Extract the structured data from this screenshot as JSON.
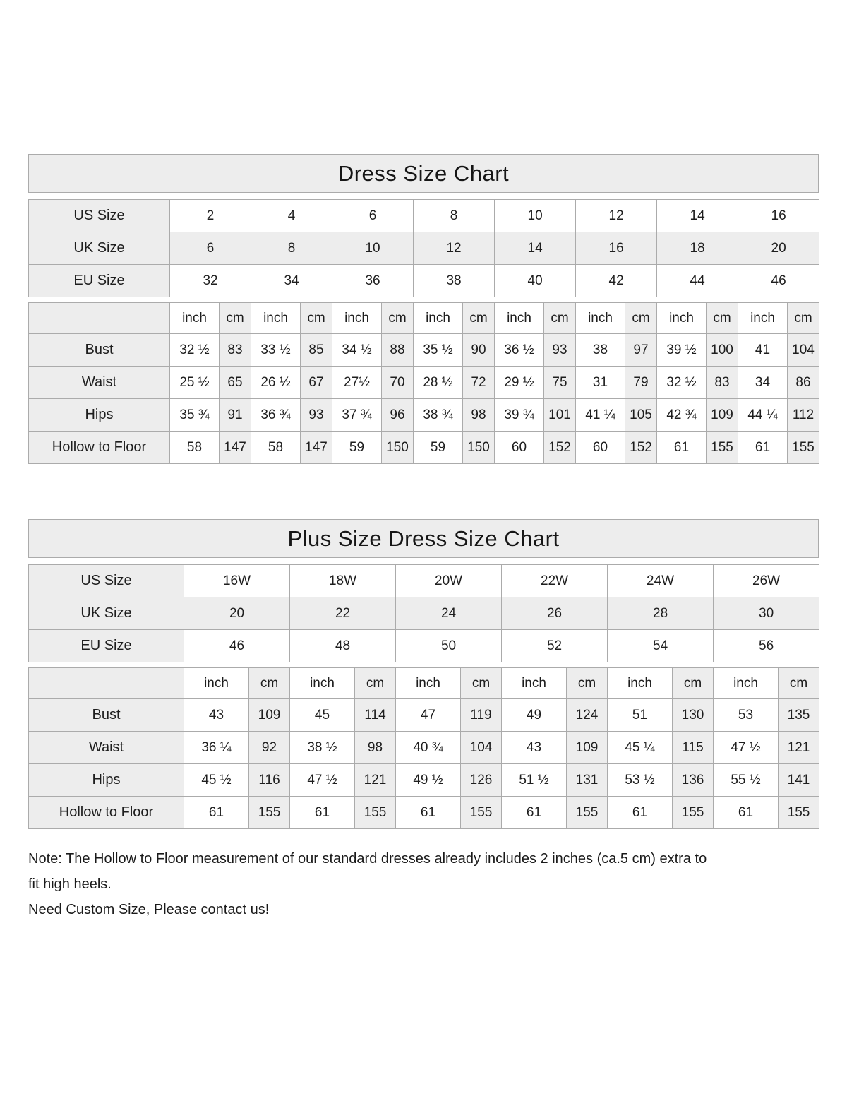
{
  "colors": {
    "page_background": "#ffffff",
    "shaded_cell": "#ededed",
    "border": "#ababab",
    "text": "#1e1e1e"
  },
  "standard_chart": {
    "title": "Dress Size Chart",
    "size_rows": [
      {
        "label": "US Size",
        "cells": [
          "2",
          "4",
          "6",
          "8",
          "10",
          "12",
          "14",
          "16"
        ]
      },
      {
        "label": "UK Size",
        "cells": [
          "6",
          "8",
          "10",
          "12",
          "14",
          "16",
          "18",
          "20"
        ]
      },
      {
        "label": "EU Size",
        "cells": [
          "32",
          "34",
          "36",
          "38",
          "40",
          "42",
          "44",
          "46"
        ]
      }
    ],
    "unit_row": [
      "inch",
      "cm",
      "inch",
      "cm",
      "inch",
      "cm",
      "inch",
      "cm",
      "inch",
      "cm",
      "inch",
      "cm",
      "inch",
      "cm",
      "inch",
      "cm"
    ],
    "measure_rows": [
      {
        "label": "Bust",
        "cells": [
          "32 ½",
          "83",
          "33 ½",
          "85",
          "34 ½",
          "88",
          "35 ½",
          "90",
          "36 ½",
          "93",
          "38",
          "97",
          "39 ½",
          "100",
          "41",
          "104"
        ]
      },
      {
        "label": "Waist",
        "cells": [
          "25 ½",
          "65",
          "26 ½",
          "67",
          "27½",
          "70",
          "28 ½",
          "72",
          "29 ½",
          "75",
          "31",
          "79",
          "32 ½",
          "83",
          "34",
          "86"
        ]
      },
      {
        "label": "Hips",
        "cells": [
          "35 ¾",
          "91",
          "36 ¾",
          "93",
          "37 ¾",
          "96",
          "38 ¾",
          "98",
          "39 ¾",
          "101",
          "41 ¼",
          "105",
          "42 ¾",
          "109",
          "44 ¼",
          "112"
        ]
      },
      {
        "label": "Hollow to Floor",
        "cells": [
          "58",
          "147",
          "58",
          "147",
          "59",
          "150",
          "59",
          "150",
          "60",
          "152",
          "60",
          "152",
          "61",
          "155",
          "61",
          "155"
        ]
      }
    ]
  },
  "plus_chart": {
    "title": "Plus Size Dress Size Chart",
    "size_rows": [
      {
        "label": "US Size",
        "cells": [
          "16W",
          "18W",
          "20W",
          "22W",
          "24W",
          "26W"
        ]
      },
      {
        "label": "UK Size",
        "cells": [
          "20",
          "22",
          "24",
          "26",
          "28",
          "30"
        ]
      },
      {
        "label": "EU Size",
        "cells": [
          "46",
          "48",
          "50",
          "52",
          "54",
          "56"
        ]
      }
    ],
    "unit_row": [
      "inch",
      "cm",
      "inch",
      "cm",
      "inch",
      "cm",
      "inch",
      "cm",
      "inch",
      "cm",
      "inch",
      "cm"
    ],
    "measure_rows": [
      {
        "label": "Bust",
        "cells": [
          "43",
          "109",
          "45",
          "114",
          "47",
          "119",
          "49",
          "124",
          "51",
          "130",
          "53",
          "135"
        ]
      },
      {
        "label": "Waist",
        "cells": [
          "36 ¼",
          "92",
          "38 ½",
          "98",
          "40 ¾",
          "104",
          "43",
          "109",
          "45 ¼",
          "115",
          "47 ½",
          "121"
        ]
      },
      {
        "label": "Hips",
        "cells": [
          "45 ½",
          "116",
          "47 ½",
          "121",
          "49 ½",
          "126",
          "51 ½",
          "131",
          "53 ½",
          "136",
          "55 ½",
          "141"
        ]
      },
      {
        "label": "Hollow to Floor",
        "cells": [
          "61",
          "155",
          "61",
          "155",
          "61",
          "155",
          "61",
          "155",
          "61",
          "155",
          "61",
          "155"
        ]
      }
    ]
  },
  "note": {
    "lines": [
      "Note: The Hollow to Floor measurement of our standard dresses already includes 2 inches (ca.5 cm) extra to",
      "fit high heels.",
      "Need Custom Size, Please contact us!"
    ]
  }
}
